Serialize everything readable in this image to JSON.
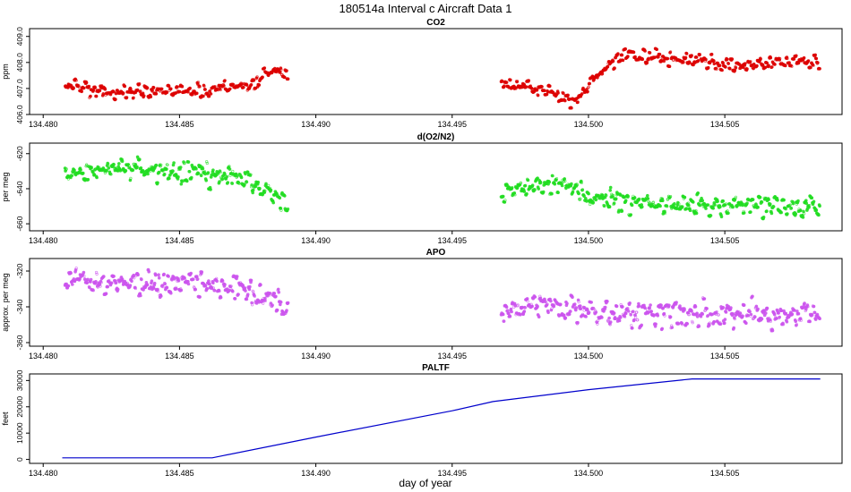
{
  "figure": {
    "title": "180514a   Interval c Aircraft Data 1",
    "xlabel": "day of year"
  },
  "chart_data": [
    {
      "type": "scatter",
      "title": "CO2",
      "ylabel": "ppm",
      "color": "#dd0000",
      "ylim": [
        406.0,
        409.3
      ],
      "yticks": [
        406.0,
        407.0,
        408.0,
        409.0
      ],
      "ytick_labels": [
        "406.0",
        "407.0",
        "408.0",
        "409.0"
      ],
      "xlim": [
        134.4795,
        134.5093
      ],
      "xticks": [
        134.48,
        134.485,
        134.49,
        134.495,
        134.5,
        134.505
      ],
      "xtick_labels": [
        "134.480",
        "134.485",
        "134.490",
        "134.495",
        "134.500",
        "134.505"
      ],
      "trend": [
        [
          134.4808,
          407.1
        ],
        [
          134.4825,
          406.85
        ],
        [
          134.4845,
          406.9
        ],
        [
          134.4865,
          406.95
        ],
        [
          134.4875,
          407.1
        ],
        [
          134.4885,
          407.8
        ],
        [
          134.489,
          407.4
        ],
        [
          134.4968,
          407.2
        ],
        [
          134.4985,
          406.95
        ],
        [
          134.4995,
          406.5
        ],
        [
          134.5,
          407.1
        ],
        [
          134.5008,
          408.0
        ],
        [
          134.5015,
          408.4
        ],
        [
          134.5025,
          408.2
        ],
        [
          134.504,
          408.0
        ],
        [
          134.506,
          407.9
        ],
        [
          134.5075,
          408.1
        ],
        [
          134.5085,
          408.0
        ]
      ],
      "noise": 0.22
    },
    {
      "type": "scatter",
      "title": "d(O2/N2)",
      "ylabel": "per meg",
      "color": "#22dd22",
      "ylim": [
        -664,
        -614
      ],
      "yticks": [
        -660,
        -640,
        -620
      ],
      "ytick_labels": [
        "-660",
        "-640",
        "-620"
      ],
      "xlim": [
        134.4795,
        134.5093
      ],
      "xticks": [
        134.48,
        134.485,
        134.49,
        134.495,
        134.5,
        134.505
      ],
      "xtick_labels": [
        "134.480",
        "134.485",
        "134.490",
        "134.495",
        "134.500",
        "134.505"
      ],
      "trend": [
        [
          134.4808,
          -630
        ],
        [
          134.483,
          -628
        ],
        [
          134.485,
          -630
        ],
        [
          134.487,
          -633
        ],
        [
          134.4885,
          -642
        ],
        [
          134.489,
          -648
        ],
        [
          134.4968,
          -642
        ],
        [
          134.4985,
          -636
        ],
        [
          134.4995,
          -640
        ],
        [
          134.5005,
          -646
        ],
        [
          134.502,
          -650
        ],
        [
          134.504,
          -650
        ],
        [
          134.506,
          -649
        ],
        [
          134.5085,
          -651
        ]
      ],
      "noise": 5.5
    },
    {
      "type": "scatter",
      "title": "APO",
      "ylabel": "approx. per meg",
      "color": "#cc55ee",
      "ylim": [
        -362,
        -313
      ],
      "yticks": [
        -360,
        -340,
        -320
      ],
      "ytick_labels": [
        "-360",
        "-340",
        "-320"
      ],
      "xlim": [
        134.4795,
        134.5093
      ],
      "xticks": [
        134.48,
        134.485,
        134.49,
        134.495,
        134.5,
        134.505
      ],
      "xtick_labels": [
        "134.480",
        "134.485",
        "134.490",
        "134.495",
        "134.500",
        "134.505"
      ],
      "trend": [
        [
          134.4808,
          -326
        ],
        [
          134.4835,
          -326
        ],
        [
          134.4855,
          -327
        ],
        [
          134.4875,
          -332
        ],
        [
          134.489,
          -338
        ],
        [
          134.4968,
          -342
        ],
        [
          134.4985,
          -338
        ],
        [
          134.5,
          -343
        ],
        [
          134.503,
          -344
        ],
        [
          134.506,
          -344
        ],
        [
          134.5085,
          -344
        ]
      ],
      "noise": 6.0
    },
    {
      "type": "line",
      "title": "PALTF",
      "ylabel": "feet",
      "color": "#0000cc",
      "ylim": [
        -1500,
        32500
      ],
      "yticks": [
        0,
        10000,
        20000,
        30000
      ],
      "ytick_labels": [
        "0",
        "10000",
        "20000",
        "30000"
      ],
      "xlim": [
        134.4795,
        134.5093
      ],
      "xticks": [
        134.48,
        134.485,
        134.49,
        134.495,
        134.5,
        134.505
      ],
      "xtick_labels": [
        "134.480",
        "134.485",
        "134.490",
        "134.495",
        "134.500",
        "134.505"
      ],
      "points": [
        [
          134.4807,
          600
        ],
        [
          134.4862,
          600
        ],
        [
          134.49,
          8500
        ],
        [
          134.495,
          18500
        ],
        [
          134.4965,
          22000
        ],
        [
          134.5,
          26500
        ],
        [
          134.5038,
          30600
        ],
        [
          134.5085,
          30600
        ]
      ]
    }
  ]
}
